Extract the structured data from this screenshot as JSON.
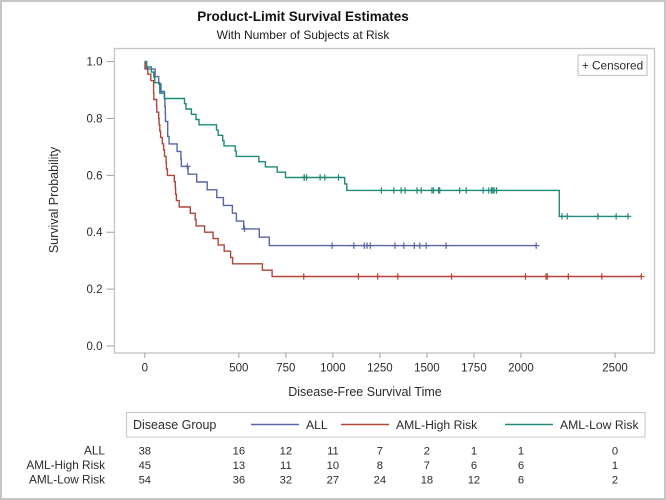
{
  "title": "Product-Limit Survival Estimates",
  "subtitle": "With Number of Subjects at Risk",
  "inset": {
    "censored_label": "+ Censored"
  },
  "chart_data": {
    "type": "line",
    "subtype": "kaplan-meier-step-plot",
    "title": "Product-Limit Survival Estimates",
    "subtitle": "With Number of Subjects at Risk",
    "xlabel": "Disease-Free Survival Time",
    "ylabel": "Survival Probability",
    "xlim": [
      -165,
      2707
    ],
    "ylim": [
      0,
      1
    ],
    "xticks": [
      0,
      500,
      750,
      1000,
      1250,
      1500,
      1750,
      2000,
      2500
    ],
    "yticks": [
      0.0,
      0.2,
      0.4,
      0.6,
      0.8,
      1.0
    ],
    "grid": false,
    "legend": {
      "title": "Disease Group",
      "position": "bottom",
      "entries": [
        "ALL",
        "AML-High Risk",
        "AML-Low Risk"
      ]
    },
    "series": [
      {
        "name": "ALL",
        "color": "#5766a5",
        "start": [
          0,
          1.0
        ],
        "steps": [
          [
            1,
            0.9737
          ],
          [
            55,
            0.9474
          ],
          [
            74,
            0.9211
          ],
          [
            86,
            0.8947
          ],
          [
            104,
            0.8684
          ],
          [
            107,
            0.8421
          ],
          [
            109,
            0.8158
          ],
          [
            110,
            0.7895
          ],
          [
            122,
            0.7368
          ],
          [
            129,
            0.7105
          ],
          [
            172,
            0.6842
          ],
          [
            192,
            0.6579
          ],
          [
            194,
            0.6316
          ],
          [
            230,
            0.6041
          ],
          [
            276,
            0.5766
          ],
          [
            332,
            0.5492
          ],
          [
            383,
            0.5217
          ],
          [
            418,
            0.4943
          ],
          [
            466,
            0.4668
          ],
          [
            487,
            0.4393
          ],
          [
            526,
            0.4118
          ],
          [
            609,
            0.3824
          ],
          [
            662,
            0.3529
          ]
        ],
        "end_time": 2081,
        "censored": [
          226,
          530,
          996,
          1111,
          1167,
          1182,
          1199,
          1330,
          1377,
          1433,
          1462,
          1496,
          1602,
          2081
        ]
      },
      {
        "name": "AML-High Risk",
        "color": "#b0463a",
        "start": [
          0,
          1.0
        ],
        "steps": [
          [
            2,
            0.9778
          ],
          [
            16,
            0.9556
          ],
          [
            32,
            0.9333
          ],
          [
            47,
            0.8889
          ],
          [
            48,
            0.8667
          ],
          [
            63,
            0.8444
          ],
          [
            64,
            0.8222
          ],
          [
            74,
            0.8
          ],
          [
            76,
            0.7778
          ],
          [
            80,
            0.7556
          ],
          [
            84,
            0.7333
          ],
          [
            93,
            0.7111
          ],
          [
            100,
            0.6889
          ],
          [
            105,
            0.6667
          ],
          [
            113,
            0.6444
          ],
          [
            115,
            0.6222
          ],
          [
            120,
            0.6
          ],
          [
            157,
            0.5778
          ],
          [
            162,
            0.5556
          ],
          [
            164,
            0.5333
          ],
          [
            168,
            0.5111
          ],
          [
            183,
            0.4889
          ],
          [
            242,
            0.4667
          ],
          [
            268,
            0.4444
          ],
          [
            273,
            0.4222
          ],
          [
            318,
            0.4
          ],
          [
            363,
            0.3778
          ],
          [
            390,
            0.3556
          ],
          [
            422,
            0.3333
          ],
          [
            456,
            0.3111
          ],
          [
            467,
            0.2889
          ],
          [
            625,
            0.2667
          ],
          [
            677,
            0.2444
          ]
        ],
        "end_time": 2640,
        "censored": [
          845,
          1136,
          1238,
          1345,
          1631,
          2024,
          2133,
          2140,
          2252,
          2430,
          2640
        ]
      },
      {
        "name": "AML-Low Risk",
        "color": "#1f8a7a",
        "start": [
          0,
          1.0
        ],
        "steps": [
          [
            10,
            0.9815
          ],
          [
            35,
            0.963
          ],
          [
            48,
            0.9444
          ],
          [
            53,
            0.9259
          ],
          [
            79,
            0.9074
          ],
          [
            80,
            0.8889
          ],
          [
            105,
            0.8704
          ],
          [
            211,
            0.8519
          ],
          [
            219,
            0.8333
          ],
          [
            248,
            0.8148
          ],
          [
            272,
            0.7963
          ],
          [
            288,
            0.7778
          ],
          [
            381,
            0.7593
          ],
          [
            390,
            0.7407
          ],
          [
            414,
            0.7222
          ],
          [
            421,
            0.7037
          ],
          [
            481,
            0.6852
          ],
          [
            486,
            0.6667
          ],
          [
            606,
            0.6481
          ],
          [
            641,
            0.6296
          ],
          [
            704,
            0.6111
          ],
          [
            748,
            0.5926
          ],
          [
            1063,
            0.5698
          ],
          [
            1074,
            0.547
          ],
          [
            2204,
            0.4558
          ]
        ],
        "end_time": 2569,
        "censored": [
          847,
          848,
          860,
          932,
          957,
          1030,
          1258,
          1324,
          1363,
          1384,
          1447,
          1470,
          1527,
          1535,
          1562,
          1568,
          1674,
          1709,
          1799,
          1829,
          1843,
          1850,
          1857,
          1870,
          2218,
          2246,
          2409,
          2506,
          2569
        ]
      }
    ],
    "at_risk_table": {
      "columns": [
        0,
        500,
        750,
        1000,
        1250,
        1500,
        1750,
        2000,
        2500
      ],
      "rows": [
        {
          "label": "ALL",
          "values": [
            38,
            16,
            12,
            11,
            7,
            2,
            1,
            1,
            0
          ]
        },
        {
          "label": "AML-High Risk",
          "values": [
            45,
            13,
            11,
            10,
            8,
            7,
            6,
            6,
            1
          ]
        },
        {
          "label": "AML-Low Risk",
          "values": [
            54,
            36,
            32,
            27,
            24,
            18,
            12,
            6,
            2
          ]
        }
      ]
    }
  }
}
